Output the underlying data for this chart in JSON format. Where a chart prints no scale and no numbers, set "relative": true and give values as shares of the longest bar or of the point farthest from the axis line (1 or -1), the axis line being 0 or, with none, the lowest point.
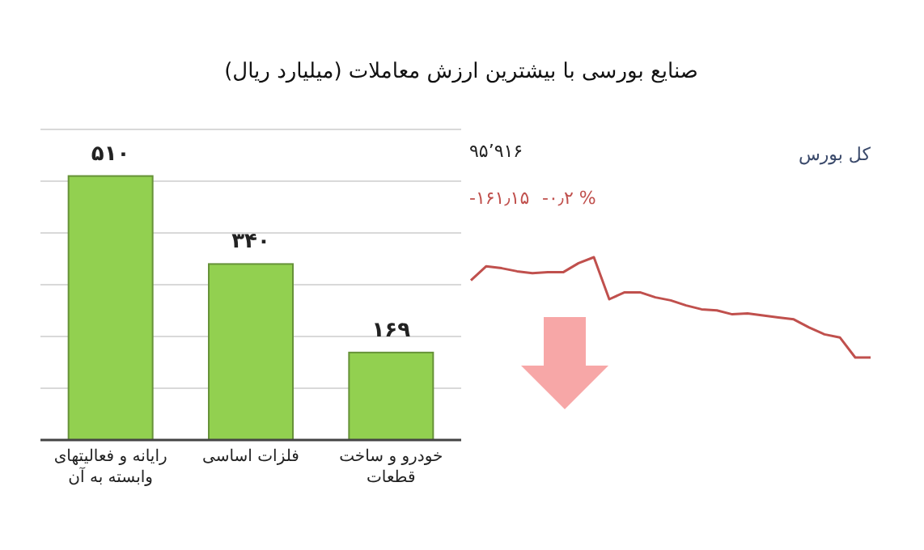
{
  "chart_data": [
    {
      "type": "bar",
      "title": "صنایع بورسی با بیشترین ارزش معاملات  (میلیارد ریال)",
      "categories": [
        "رایانه و فعالیتهای وابسته به آن",
        "فلزات اساسی",
        "خودرو و ساخت قطعات"
      ],
      "values": [
        510,
        340,
        169
      ],
      "value_labels": [
        "۵۱۰",
        "۳۴۰",
        "۱۶۹"
      ],
      "color": "#92d050",
      "ylim": [
        0,
        600
      ],
      "yticks": [
        {
          "value": 0,
          "label": null
        },
        {
          "value": 100,
          "label": null
        },
        {
          "value": 200,
          "label": null
        },
        {
          "value": 300,
          "label": null
        },
        {
          "value": 400,
          "label": null
        },
        {
          "value": 500,
          "label": null
        },
        {
          "value": 600,
          "label": null
        }
      ],
      "grid": "y",
      "tick_labels": "x"
    },
    {
      "type": "line",
      "relative": true,
      "categories": [
        null,
        null,
        null,
        null,
        null,
        null,
        null,
        null,
        null,
        null,
        null,
        null,
        null,
        null,
        null,
        null,
        null,
        null,
        null,
        null,
        null,
        null,
        null,
        null,
        null,
        null,
        null
      ],
      "series": [
        {
          "name": "کل بورس",
          "color": "#c0504d",
          "values": [
            0.77,
            0.91,
            0.89,
            0.86,
            0.84,
            0.85,
            0.85,
            0.94,
            1,
            0.58,
            0.65,
            0.65,
            0.6,
            0.57,
            0.52,
            0.48,
            0.47,
            0.43,
            0.44,
            0.42,
            0.4,
            0.38,
            0.3,
            0.23,
            0.2,
            0,
            0
          ]
        }
      ],
      "annotations": [
        "۹۵٬۹۱۶",
        "-۱۶۱٫۱۵",
        "-۰٫۲ %"
      ],
      "tick_labels": false
    }
  ]
}
